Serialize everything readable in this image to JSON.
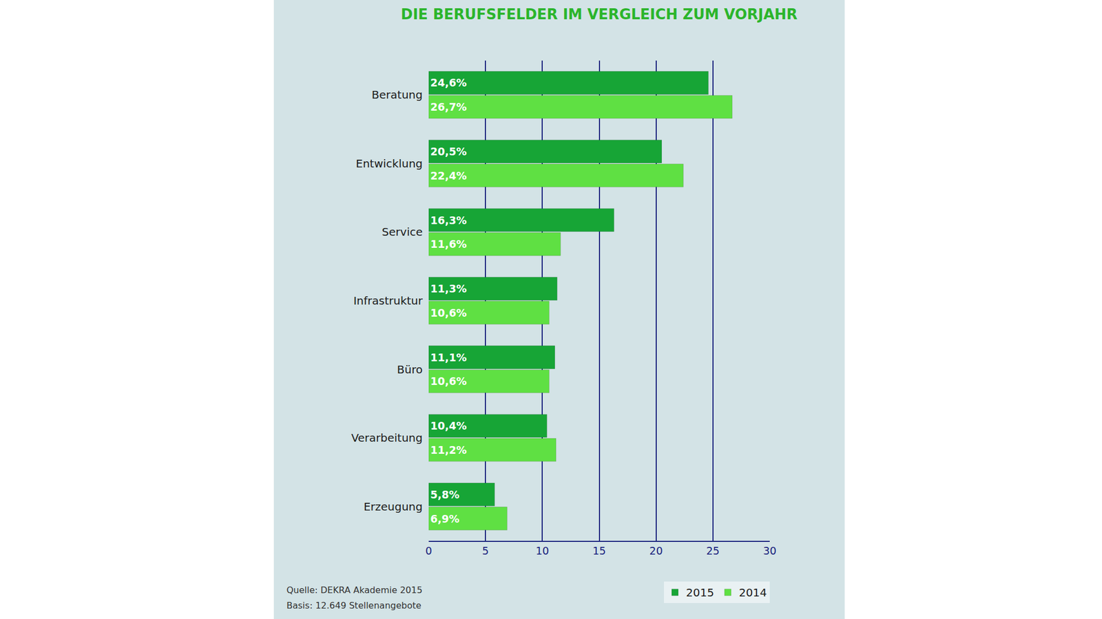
{
  "chart_data": {
    "type": "bar",
    "title": "DIE BERUFSFELDER IM VERGLEICH ZUM VORJAHR",
    "orientation": "horizontal",
    "categories": [
      "Beratung",
      "Entwicklung",
      "Service",
      "Infrastruktur",
      "Büro",
      "Verarbeitung",
      "Erzeugung"
    ],
    "series": [
      {
        "name": "2015",
        "color": "#17a536",
        "values": [
          24.6,
          20.5,
          16.3,
          11.3,
          11.1,
          10.4,
          5.8
        ],
        "value_labels": [
          "24,6%",
          "20,5%",
          "16,3%",
          "11,3%",
          "11,1%",
          "10,4%",
          "5,8%"
        ]
      },
      {
        "name": "2014",
        "color": "#5fe043",
        "values": [
          26.7,
          22.4,
          11.6,
          10.6,
          10.6,
          11.2,
          6.9
        ],
        "value_labels": [
          "26,7%",
          "22,4%",
          "11,6%",
          "10,6%",
          "10,6%",
          "11,2%",
          "6,9%"
        ]
      }
    ],
    "xlim": [
      0,
      30
    ],
    "xticks": [
      0,
      5,
      10,
      15,
      20,
      25,
      30
    ],
    "grid": true,
    "data_labels": true,
    "legend": "bottom right",
    "annotations": [
      "Quelle: DEKRA Akademie 2015",
      "Basis: 12.649 Stellenangebote"
    ]
  }
}
